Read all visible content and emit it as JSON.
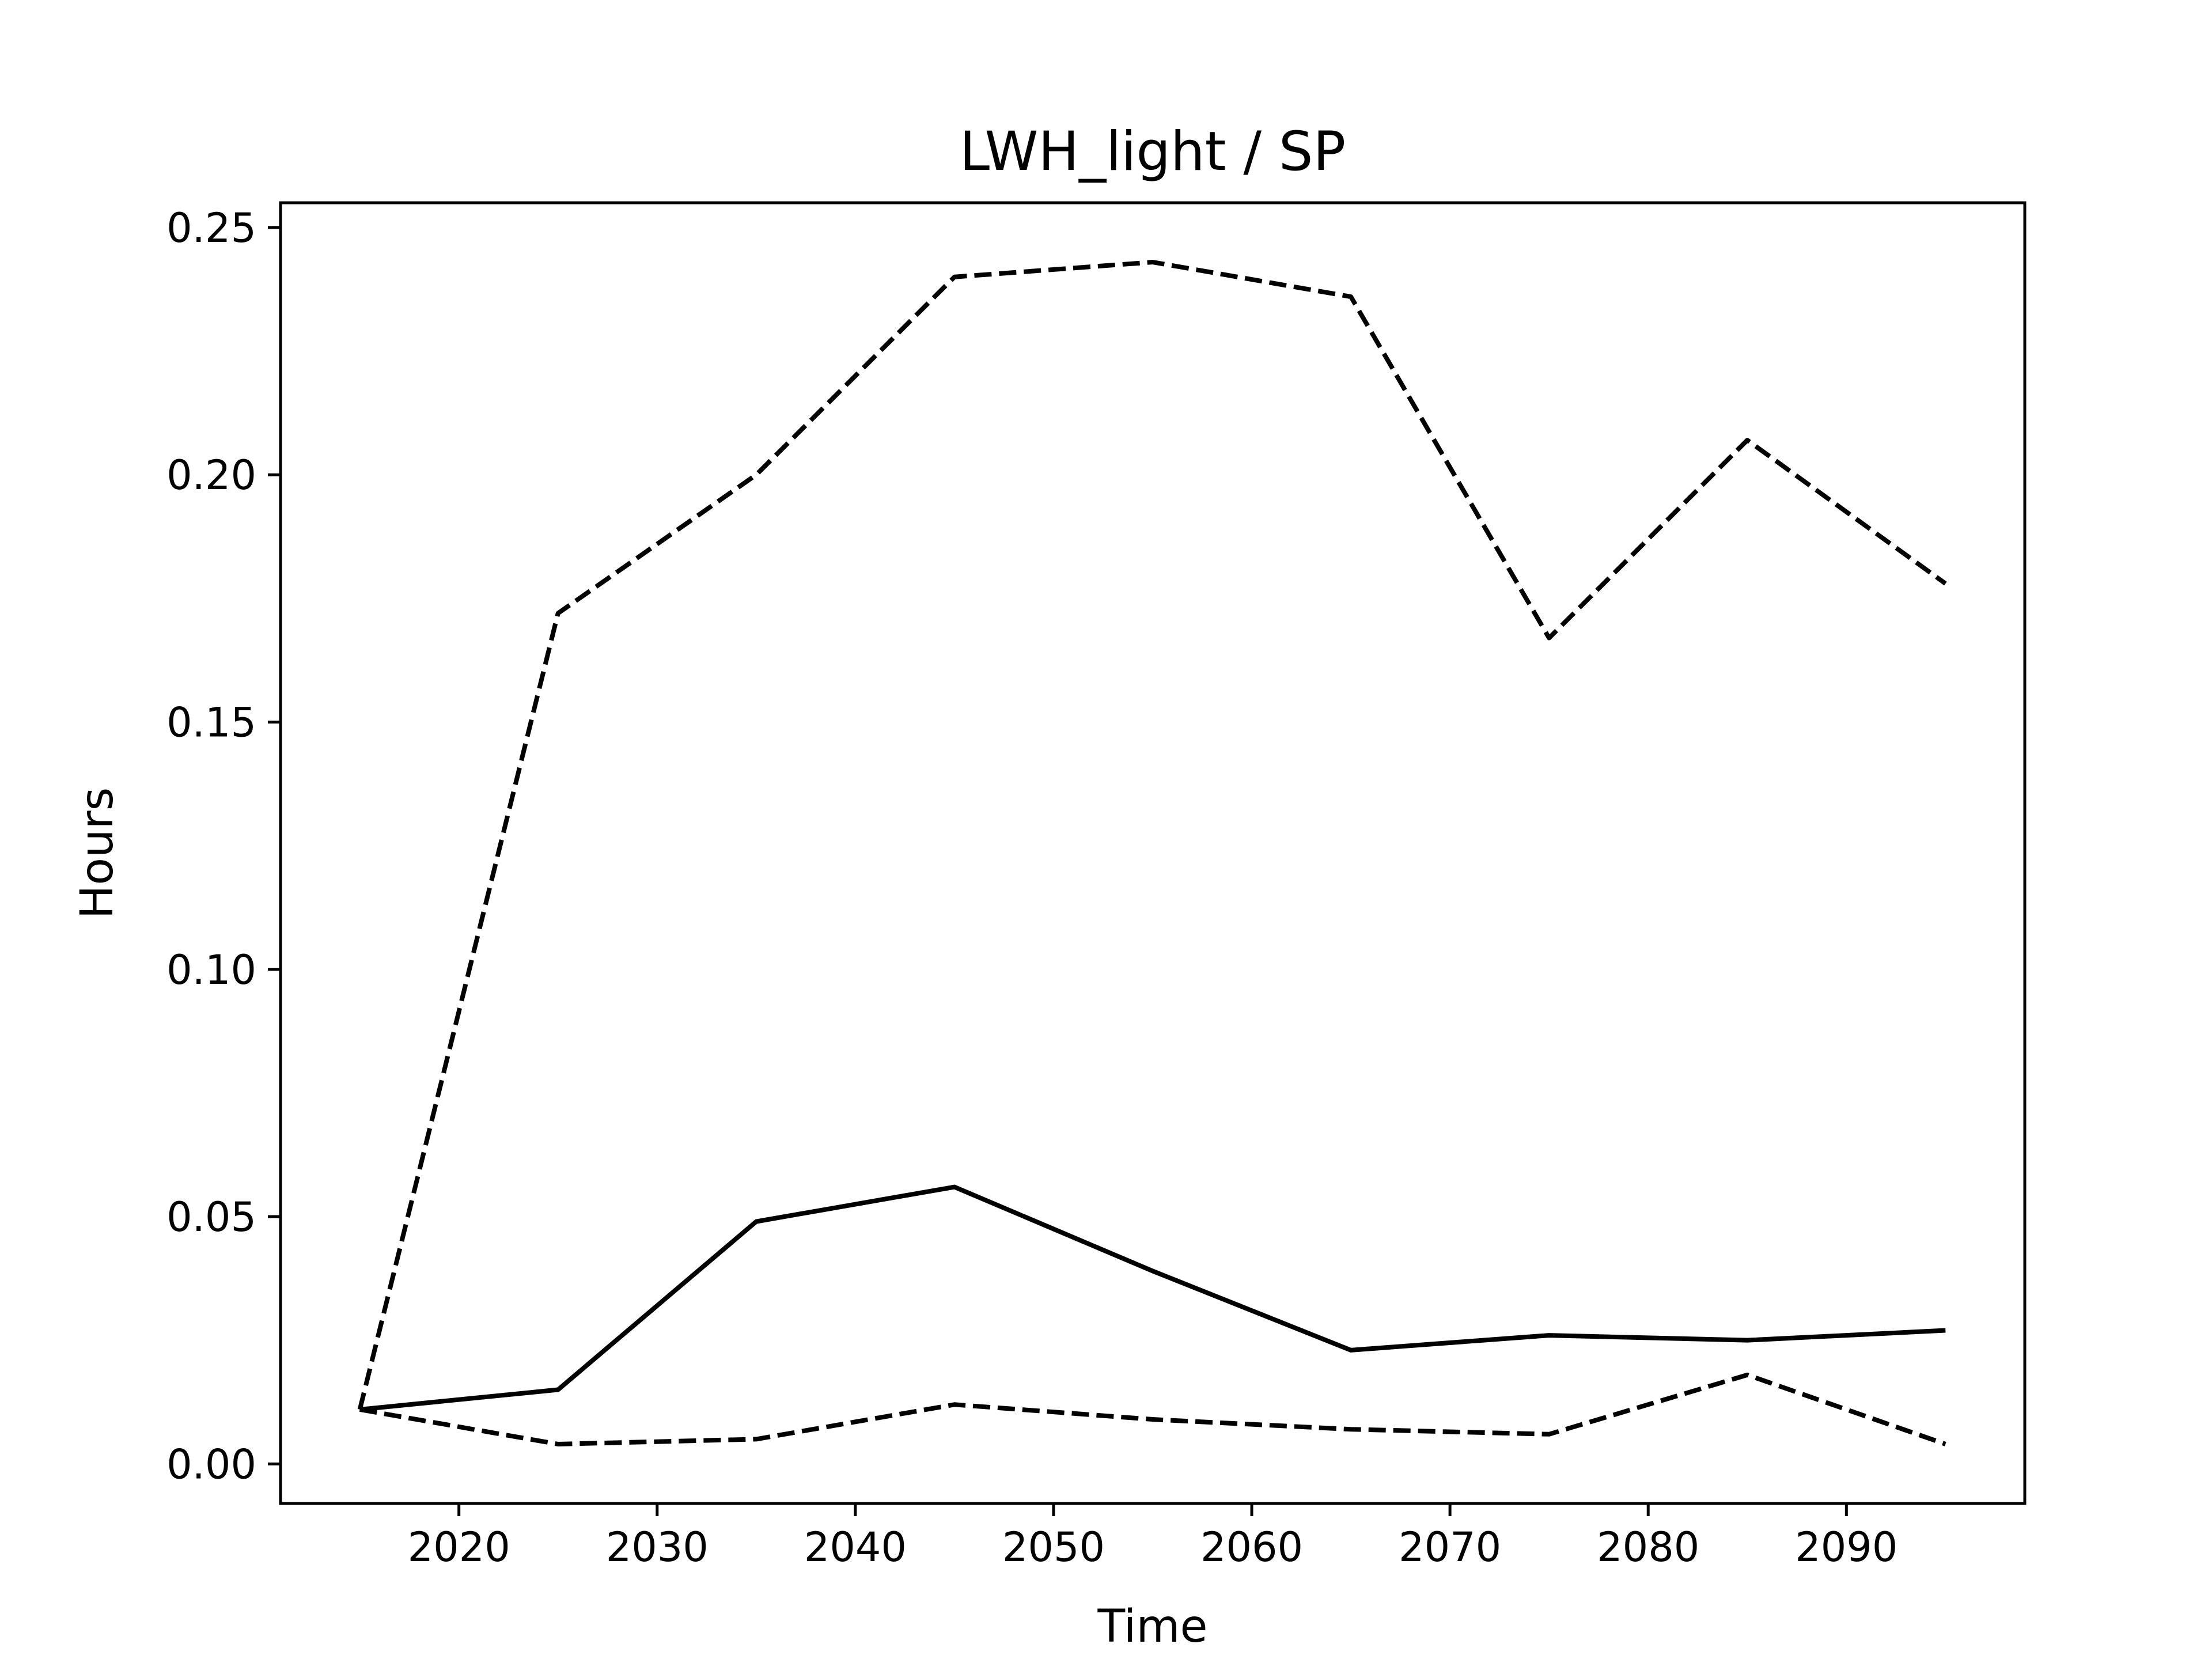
{
  "chart_data": {
    "type": "line",
    "title": "LWH_light / SP",
    "xlabel": "Time",
    "ylabel": "Hours",
    "x": [
      2015,
      2025,
      2035,
      2045,
      2055,
      2065,
      2075,
      2085,
      2095
    ],
    "xlim": [
      2011,
      2099
    ],
    "ylim": [
      -0.008,
      0.255
    ],
    "xticks": [
      2020,
      2030,
      2040,
      2050,
      2060,
      2070,
      2080,
      2090
    ],
    "yticks": [
      0.0,
      0.05,
      0.1,
      0.15,
      0.2,
      0.25
    ],
    "ytick_labels": [
      "0.00",
      "0.05",
      "0.10",
      "0.15",
      "0.20",
      "0.25"
    ],
    "grid": false,
    "series": [
      {
        "style": "solid",
        "color": "#000000",
        "values": [
          0.011,
          0.015,
          0.049,
          0.056,
          0.039,
          0.023,
          0.026,
          0.025,
          0.027
        ]
      },
      {
        "style": "dashed",
        "color": "#000000",
        "values": [
          0.011,
          0.172,
          0.2,
          0.24,
          0.243,
          0.236,
          0.167,
          0.207,
          0.178
        ]
      },
      {
        "style": "dashed",
        "color": "#000000",
        "values": [
          0.011,
          0.004,
          0.005,
          0.012,
          0.009,
          0.007,
          0.006,
          0.018,
          0.004
        ]
      }
    ]
  }
}
